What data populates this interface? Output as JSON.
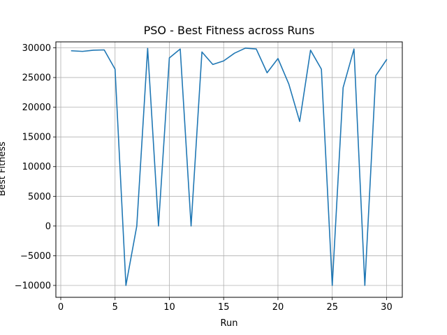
{
  "chart_data": {
    "type": "line",
    "title": "PSO - Best Fitness across Runs",
    "xlabel": "Run",
    "ylabel": "Best Fitness",
    "xlim": [
      -0.45,
      31.45
    ],
    "ylim": [
      -12000,
      31000
    ],
    "xticks": [
      0,
      5,
      10,
      15,
      20,
      25,
      30
    ],
    "yticks": [
      -10000,
      -5000,
      0,
      5000,
      10000,
      15000,
      20000,
      25000,
      30000
    ],
    "grid": true,
    "line_color": "#1f77b4",
    "series": [
      {
        "x": [
          1,
          2,
          3,
          4,
          5,
          6,
          7,
          8,
          9,
          10,
          11,
          12,
          13,
          14,
          15,
          16,
          17,
          18,
          19,
          20,
          21,
          22,
          23,
          24,
          25,
          26,
          27,
          28,
          29,
          30
        ],
        "values": [
          29500,
          29400,
          29600,
          29650,
          26400,
          -10000,
          0,
          29900,
          0,
          28300,
          29800,
          0,
          29300,
          27200,
          27800,
          29100,
          29950,
          29800,
          25800,
          28200,
          23900,
          17600,
          29600,
          26400,
          -10000,
          23300,
          29800,
          -10000,
          25300,
          28000
        ]
      }
    ]
  }
}
